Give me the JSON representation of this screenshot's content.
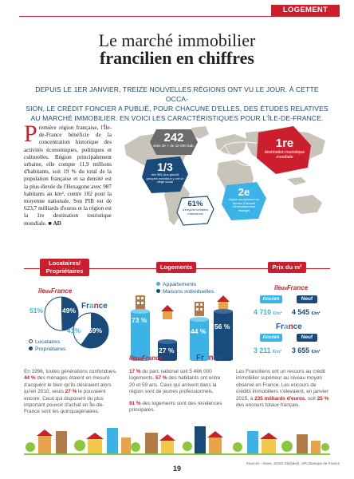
{
  "header": {
    "rubric": "LOGEMENT"
  },
  "title": {
    "line1": "Le marché immobilier",
    "line2": "francilien en chiffres"
  },
  "intro": {
    "lines": [
      "DEPUIS LE 1ER JANVIER, TREIZE NOUVELLES RÉGIONS ONT VU LE JOUR. À CETTE OCCA-",
      "SION, LE CRÉDIT FONCIER A PUBLIÉ, POUR CHACUNE D'ELLES, DES ÉTUDES RELATIVES",
      "AU MARCHÉ IMMOBILIER. EN VOICI LES CARACTÉRISTIQUES POUR L'ÎLE-DE-FRANCE."
    ]
  },
  "lead": {
    "dropcap": "P",
    "text": "remière région française, l'Île-de-France bénéficie de la concentration historique des activités économiques, politiques et culturelles. Région principalement urbaine, elle compte 11,9 millions d'habitants, soit 19 % du total de la population française et sa densité est la plus élevée de l'Hexagone avec 987 habitants au km², contre 102 pour la moyenne nationale. Son PIB est de 623,7 milliards d'euros et la région est la 1re destination touristique mondiale.",
    "signature": "AD"
  },
  "map": {
    "b242": {
      "value": "242",
      "text": "sites de + de 10 000 hab."
    },
    "b13": {
      "value": "1/3",
      "text": "des 500 plus grands groupes mondiaux y ont un siège social"
    },
    "b61": {
      "value": "61%",
      "text": "d'emplois tertiaires marchands"
    },
    "b1re": {
      "value": "1re",
      "text": "destination touristique mondiale"
    },
    "b2e": {
      "value": "2e",
      "text": "région européenne en termes d'accueil d'investissement étranger"
    }
  },
  "sections": {
    "locataires": "Locataires/ Propriétaires",
    "logements": "Logements",
    "prix": "Prix du m²"
  },
  "labels": {
    "ile_main": "île",
    "ile_de": "de",
    "ile_france": "France",
    "france_fr": "Fr",
    "france_a": "a",
    "france_n": "n",
    "france_ce": "ce"
  },
  "locataires": {
    "ile": {
      "locataires": "51%",
      "proprietaires": "49%"
    },
    "france": {
      "locataires": "41%",
      "proprietaires": "59%"
    },
    "legend": [
      "Locataires",
      "Propriétaires"
    ]
  },
  "logements": {
    "legend": [
      "Appartements",
      "Maisons individuelles"
    ],
    "ile": {
      "appartements": "73 %",
      "maisons": "27 %"
    },
    "france": {
      "appartements": "44 %",
      "maisons": "56 %"
    }
  },
  "prix": {
    "ancien": "Ancien",
    "neuf": "Neuf",
    "ile": {
      "ancien": "4 710",
      "neuf": "4 545"
    },
    "france": {
      "ancien": "3 211",
      "neuf": "3 655"
    },
    "unit": "€/m²"
  },
  "columns": {
    "c1": {
      "pre": "En 1996, toutes générations confondues, ",
      "b1": "44 %",
      "mid": " des ménages étaient en mesure d'acquérir le bien qu'ils désiraient alors qu'en 2010, seuls ",
      "b2": "27 %",
      "post": " le pouvaient encore. Ceux qui disposent du plus important pouvoir d'achat en Île-de-France sont les quinquagénaires."
    },
    "c2": {
      "b1": "17 %",
      "t1": " du parc national soit 5 486 000 logements. ",
      "b2": "57 %",
      "t2": " des habitants ont entre 20 et 59 ans. Ceux qui arrivent dans la région sont de jeunes professionnels.",
      "b3": "91 %",
      "t3": " des logements sont des résidences principales."
    },
    "c3": {
      "pre": "Les Franciliens ont un recours au crédit immobilier supérieur au niveau moyen observé en France. Les encours de crédits immobiliers s'élevaient, en janvier 2015, à ",
      "b1": "235 milliards d'euros",
      "mid": ", soit ",
      "b2": "25 %",
      "post": " des encours totaux français."
    }
  },
  "footer": {
    "sources": "Sources : Insee, SOeS Sit@del2, UPL/Banque de France",
    "page": "19"
  },
  "colors": {
    "red": "#cc1f2d",
    "navy": "#1a4a7a",
    "cyan": "#3bb3e6",
    "map": "#c9c4ba"
  }
}
